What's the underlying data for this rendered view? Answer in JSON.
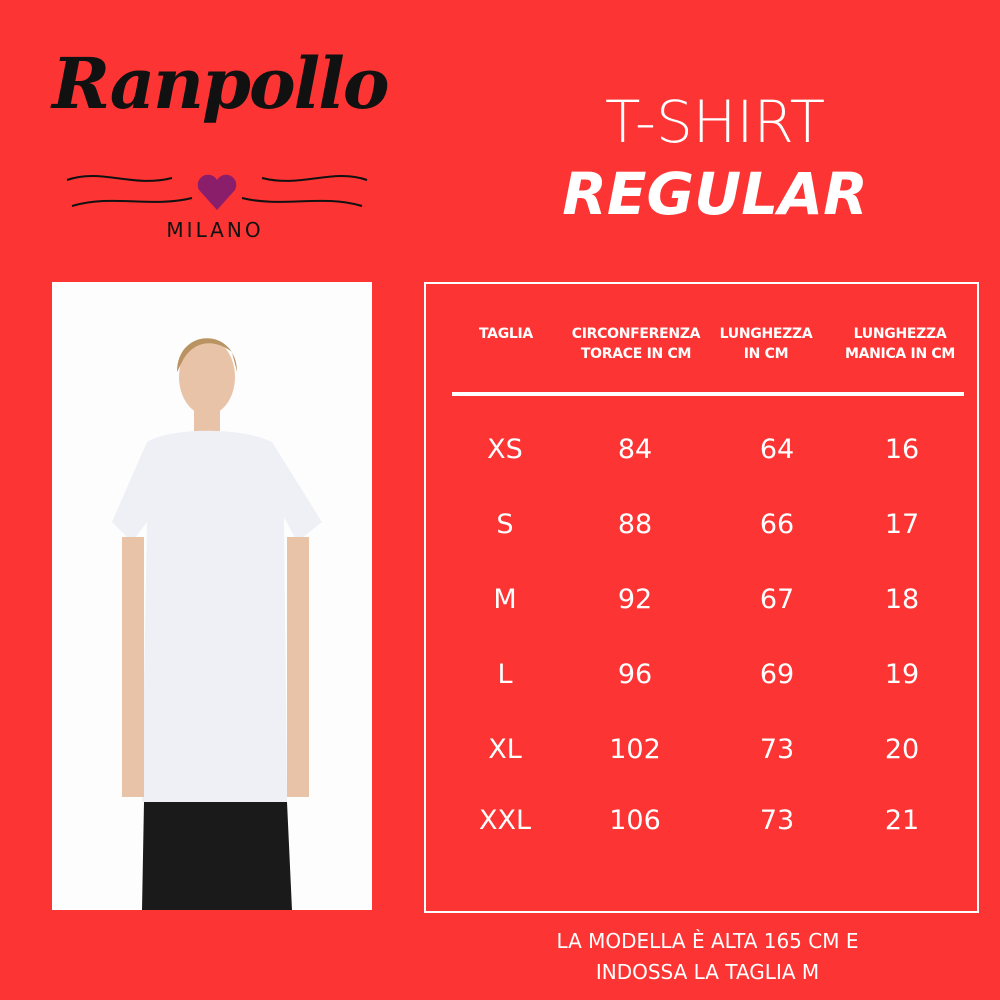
{
  "brand": {
    "name": "Ranpollo",
    "city": "MILANO",
    "heart_color": "#8b1e6b"
  },
  "title": {
    "line1": "T-SHIRT",
    "line2": "REGULAR"
  },
  "table": {
    "headers": [
      [
        "TAGLIA",
        ""
      ],
      [
        "CIRCONFERENZA",
        "TORACE IN CM"
      ],
      [
        "LUNGHEZZA",
        "IN CM"
      ],
      [
        "LUNGHEZZA",
        "MANICA IN CM"
      ]
    ],
    "rows": [
      [
        "XS",
        "84",
        "64",
        "16"
      ],
      [
        "S",
        "88",
        "66",
        "17"
      ],
      [
        "M",
        "92",
        "67",
        "18"
      ],
      [
        "L",
        "96",
        "69",
        "19"
      ],
      [
        "XL",
        "102",
        "73",
        "20"
      ],
      [
        "XXL",
        "106",
        "73",
        "21"
      ]
    ]
  },
  "caption": {
    "line1": "LA MODELLA È ALTA 165 CM E",
    "line2": "INDOSSA LA TAGLIA M"
  },
  "colors": {
    "background": "#fd3434"
  }
}
